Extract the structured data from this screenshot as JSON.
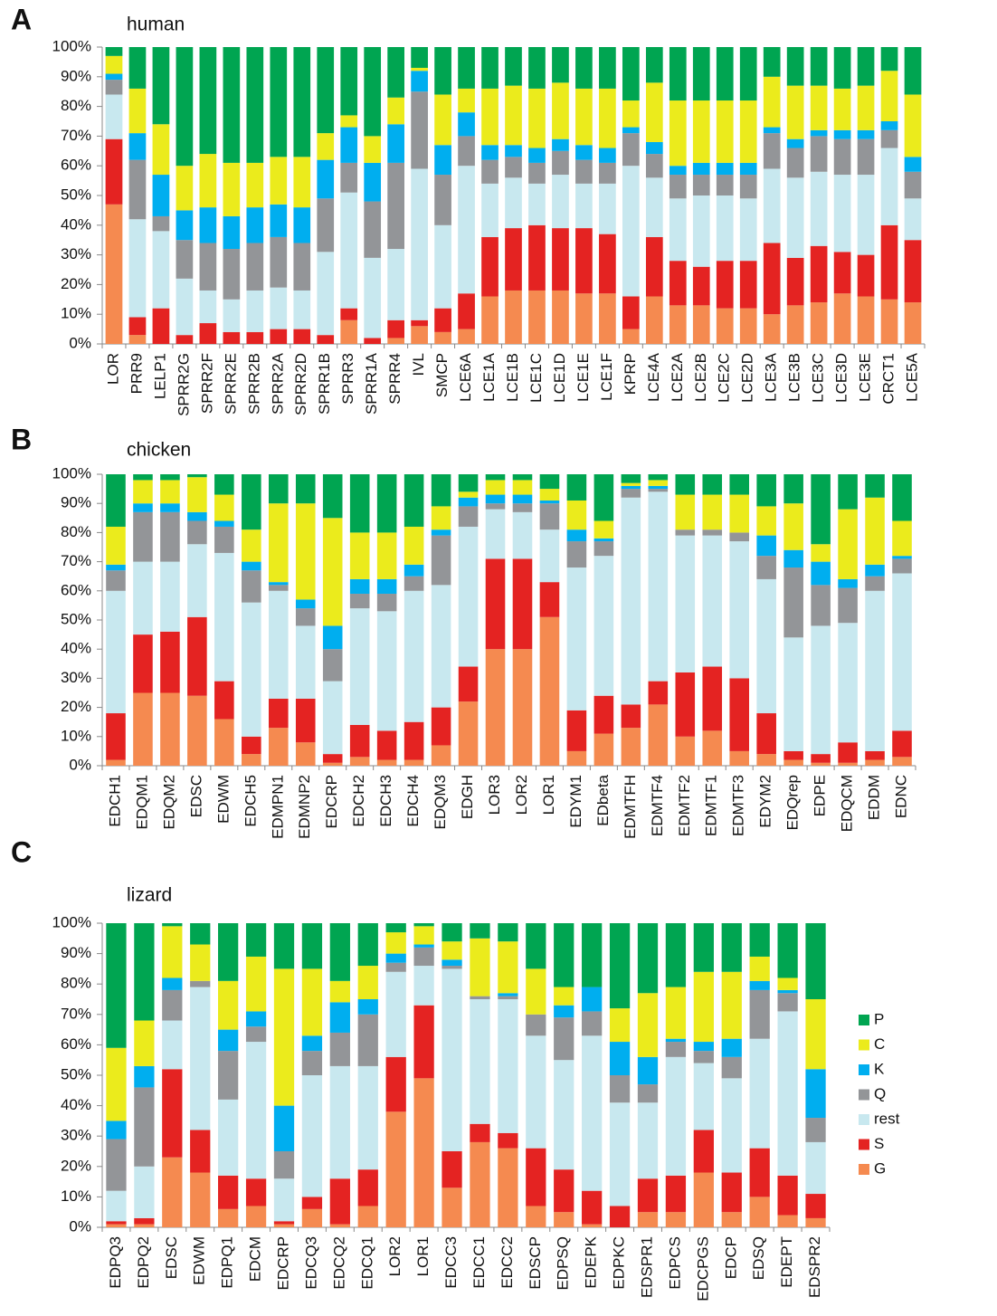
{
  "chart_data": [
    {
      "type": "bar",
      "stacked": true,
      "panel": "A",
      "title": "human",
      "categories": [
        "LOR",
        "PRR9",
        "LELP1",
        "SPRR2G",
        "SPRR2F",
        "SPRR2E",
        "SPRR2B",
        "SPRR2A",
        "SPRR2D",
        "SPRR1B",
        "SPRR3",
        "SPRR1A",
        "SPRR4",
        "IVL",
        "SMCP",
        "LCE6A",
        "LCE1A",
        "LCE1B",
        "LCE1C",
        "LCE1D",
        "LCE1E",
        "LCE1F",
        "KPRP",
        "LCE4A",
        "LCE2A",
        "LCE2B",
        "LCE2C",
        "LCE2D",
        "LCE3A",
        "LCE3B",
        "LCE3C",
        "LCE3D",
        "LCE3E",
        "CRCT1",
        "LCE5A"
      ],
      "highlight_indices": [
        0
      ],
      "highlight_color": "#e8262a",
      "ylim": [
        0,
        100
      ],
      "yticks": [
        {
          "value": 0,
          "label": "0%"
        },
        {
          "value": 10,
          "label": "10%"
        },
        {
          "value": 20,
          "label": "20%"
        },
        {
          "value": 30,
          "label": "30%"
        },
        {
          "value": 40,
          "label": "40%"
        },
        {
          "value": 50,
          "label": "50%"
        },
        {
          "value": 60,
          "label": "60%"
        },
        {
          "value": 70,
          "label": "70%"
        },
        {
          "value": 80,
          "label": "80%"
        },
        {
          "value": 90,
          "label": "90%"
        },
        {
          "value": 100,
          "label": "100%"
        }
      ],
      "series": [
        {
          "name": "G",
          "color": "#f58a50",
          "values": [
            47,
            3,
            0,
            0,
            0,
            0,
            0,
            0,
            0,
            0,
            8,
            0,
            2,
            6,
            4,
            5,
            16,
            18,
            18,
            18,
            17,
            17,
            5,
            16,
            13,
            13,
            12,
            12,
            10,
            13,
            14,
            17,
            16,
            15,
            14
          ]
        },
        {
          "name": "S",
          "color": "#e42322",
          "values": [
            22,
            6,
            12,
            3,
            7,
            4,
            4,
            5,
            5,
            3,
            4,
            2,
            6,
            2,
            8,
            12,
            20,
            21,
            22,
            21,
            22,
            20,
            11,
            20,
            15,
            13,
            16,
            16,
            24,
            16,
            19,
            14,
            14,
            25,
            21
          ]
        },
        {
          "name": "rest",
          "color": "#c8e8ef",
          "values": [
            15,
            33,
            26,
            19,
            11,
            11,
            14,
            14,
            13,
            28,
            39,
            27,
            24,
            51,
            28,
            43,
            18,
            17,
            14,
            18,
            15,
            17,
            44,
            20,
            21,
            24,
            22,
            21,
            25,
            27,
            25,
            26,
            27,
            26,
            14
          ]
        },
        {
          "name": "Q",
          "color": "#939598",
          "values": [
            5,
            20,
            5,
            13,
            16,
            17,
            16,
            17,
            16,
            18,
            10,
            19,
            29,
            26,
            17,
            10,
            8,
            7,
            7,
            8,
            8,
            7,
            11,
            8,
            8,
            7,
            7,
            8,
            12,
            10,
            12,
            12,
            12,
            6,
            9
          ]
        },
        {
          "name": "K",
          "color": "#00aeef",
          "values": [
            2,
            9,
            14,
            10,
            12,
            11,
            12,
            11,
            12,
            13,
            12,
            13,
            13,
            7,
            10,
            8,
            5,
            4,
            5,
            4,
            5,
            5,
            2,
            4,
            3,
            4,
            4,
            4,
            2,
            3,
            2,
            3,
            3,
            3,
            5
          ]
        },
        {
          "name": "C",
          "color": "#ebeb1c",
          "values": [
            6,
            15,
            17,
            15,
            18,
            18,
            15,
            16,
            17,
            9,
            4,
            9,
            9,
            1,
            17,
            8,
            19,
            20,
            20,
            19,
            19,
            20,
            9,
            20,
            22,
            21,
            21,
            21,
            17,
            18,
            15,
            14,
            15,
            17,
            21
          ]
        },
        {
          "name": "P",
          "color": "#00a551",
          "values": [
            3,
            14,
            26,
            40,
            36,
            39,
            39,
            37,
            37,
            29,
            23,
            30,
            17,
            7,
            16,
            14,
            14,
            13,
            14,
            12,
            14,
            14,
            18,
            12,
            18,
            18,
            18,
            18,
            10,
            13,
            13,
            14,
            13,
            8,
            16
          ]
        }
      ]
    },
    {
      "type": "bar",
      "stacked": true,
      "panel": "B",
      "title": "chicken",
      "categories": [
        "EDCH1",
        "EDQM1",
        "EDQM2",
        "EDSC",
        "EDWM",
        "EDCH5",
        "EDMPN1",
        "EDMNP2",
        "EDCRP",
        "EDCH2",
        "EDCH3",
        "EDCH4",
        "EDQM3",
        "EDGH",
        "LOR3",
        "LOR2",
        "LOR1",
        "EDYM1",
        "EDbeta",
        "EDMTFH",
        "EDMTF4",
        "EDMTF2",
        "EDMTF1",
        "EDMTF3",
        "EDYM2",
        "EDQrep",
        "EDPE",
        "EDQCM",
        "EDDM",
        "EDNC"
      ],
      "highlight_indices": [
        14,
        15,
        16
      ],
      "highlight_color": "#e8262a",
      "ylim": [
        0,
        100
      ],
      "yticks": [
        {
          "value": 0,
          "label": "0%"
        },
        {
          "value": 10,
          "label": "10%"
        },
        {
          "value": 20,
          "label": "20%"
        },
        {
          "value": 30,
          "label": "30%"
        },
        {
          "value": 40,
          "label": "40%"
        },
        {
          "value": 50,
          "label": "50%"
        },
        {
          "value": 60,
          "label": "60%"
        },
        {
          "value": 70,
          "label": "70%"
        },
        {
          "value": 80,
          "label": "80%"
        },
        {
          "value": 90,
          "label": "90%"
        },
        {
          "value": 100,
          "label": "100%"
        }
      ],
      "series": [
        {
          "name": "G",
          "color": "#f58a50",
          "values": [
            2,
            25,
            25,
            24,
            16,
            4,
            13,
            8,
            1,
            3,
            2,
            2,
            7,
            22,
            40,
            40,
            51,
            5,
            11,
            13,
            21,
            10,
            12,
            5,
            4,
            2,
            1,
            1,
            2,
            3
          ]
        },
        {
          "name": "S",
          "color": "#e42322",
          "values": [
            16,
            20,
            21,
            27,
            13,
            6,
            10,
            15,
            3,
            11,
            10,
            13,
            13,
            12,
            31,
            31,
            12,
            14,
            13,
            8,
            8,
            22,
            22,
            25,
            14,
            3,
            3,
            7,
            3,
            9
          ]
        },
        {
          "name": "rest",
          "color": "#c8e8ef",
          "values": [
            42,
            25,
            24,
            25,
            44,
            46,
            37,
            25,
            25,
            40,
            41,
            45,
            42,
            48,
            17,
            16,
            18,
            49,
            48,
            71,
            65,
            47,
            45,
            47,
            46,
            39,
            44,
            41,
            55,
            54
          ]
        },
        {
          "name": "Q",
          "color": "#939598",
          "values": [
            7,
            17,
            17,
            8,
            9,
            11,
            2,
            6,
            11,
            5,
            6,
            5,
            17,
            7,
            2,
            3,
            9,
            9,
            5,
            3,
            1,
            2,
            2,
            3,
            8,
            24,
            14,
            12,
            5,
            5
          ]
        },
        {
          "name": "K",
          "color": "#00aeef",
          "values": [
            2,
            3,
            3,
            3,
            2,
            3,
            1,
            3,
            8,
            5,
            5,
            4,
            2,
            3,
            3,
            3,
            1,
            4,
            1,
            1,
            1,
            0,
            0,
            0,
            7,
            6,
            8,
            3,
            4,
            1
          ]
        },
        {
          "name": "C",
          "color": "#ebeb1c",
          "values": [
            13,
            8,
            8,
            12,
            9,
            11,
            27,
            33,
            37,
            16,
            16,
            13,
            8,
            2,
            5,
            5,
            4,
            10,
            6,
            1,
            2,
            12,
            12,
            13,
            10,
            16,
            6,
            24,
            23,
            12
          ]
        },
        {
          "name": "P",
          "color": "#00a551",
          "values": [
            18,
            2,
            2,
            1,
            7,
            19,
            10,
            10,
            15,
            20,
            20,
            18,
            11,
            6,
            2,
            2,
            5,
            9,
            16,
            3,
            2,
            7,
            7,
            7,
            11,
            10,
            24,
            12,
            8,
            16
          ]
        }
      ]
    },
    {
      "type": "bar",
      "stacked": true,
      "panel": "C",
      "title": "lizard",
      "categories": [
        "EDPQ3",
        "EDPQ2",
        "EDSC",
        "EDWM",
        "EDPQ1",
        "EDCM",
        "EDCRP",
        "EDCQ3",
        "EDCQ2",
        "EDCQ1",
        "LOR2",
        "LOR1",
        "EDCC3",
        "EDCC1",
        "EDCC2",
        "EDSCP",
        "EDPSQ",
        "EDEPK",
        "EDPKC",
        "EDSPR1",
        "EDPCS",
        "EDCPGS",
        "EDCP",
        "EDSQ",
        "EDEPT",
        "EDSPR2"
      ],
      "highlight_indices": [
        10,
        11
      ],
      "highlight_color": "#e8262a",
      "legend": "right",
      "ylim": [
        0,
        100
      ],
      "yticks": [
        {
          "value": 0,
          "label": "0%"
        },
        {
          "value": 10,
          "label": "10%"
        },
        {
          "value": 20,
          "label": "20%"
        },
        {
          "value": 30,
          "label": "30%"
        },
        {
          "value": 40,
          "label": "40%"
        },
        {
          "value": 50,
          "label": "50%"
        },
        {
          "value": 60,
          "label": "60%"
        },
        {
          "value": 70,
          "label": "70%"
        },
        {
          "value": 80,
          "label": "80%"
        },
        {
          "value": 90,
          "label": "90%"
        },
        {
          "value": 100,
          "label": "100%"
        }
      ],
      "series": [
        {
          "name": "G",
          "color": "#f58a50",
          "values": [
            1,
            1,
            23,
            18,
            6,
            7,
            1,
            6,
            1,
            7,
            38,
            49,
            13,
            28,
            26,
            7,
            5,
            1,
            0,
            5,
            5,
            18,
            5,
            10,
            4,
            3
          ]
        },
        {
          "name": "S",
          "color": "#e42322",
          "values": [
            1,
            2,
            29,
            14,
            11,
            9,
            1,
            4,
            15,
            12,
            18,
            24,
            12,
            6,
            5,
            19,
            14,
            11,
            7,
            11,
            12,
            14,
            13,
            16,
            13,
            8
          ]
        },
        {
          "name": "rest",
          "color": "#c8e8ef",
          "values": [
            10,
            17,
            16,
            47,
            25,
            45,
            14,
            40,
            37,
            34,
            28,
            13,
            60,
            41,
            44,
            37,
            36,
            51,
            34,
            25,
            39,
            22,
            31,
            36,
            54,
            17
          ]
        },
        {
          "name": "Q",
          "color": "#939598",
          "values": [
            17,
            26,
            10,
            2,
            16,
            5,
            9,
            8,
            11,
            17,
            3,
            6,
            1,
            1,
            1,
            7,
            14,
            8,
            9,
            6,
            5,
            4,
            7,
            16,
            6,
            8
          ]
        },
        {
          "name": "K",
          "color": "#00aeef",
          "values": [
            6,
            7,
            4,
            0,
            7,
            5,
            15,
            5,
            10,
            5,
            3,
            1,
            2,
            0,
            1,
            0,
            4,
            8,
            11,
            9,
            1,
            3,
            6,
            3,
            1,
            16
          ]
        },
        {
          "name": "C",
          "color": "#ebeb1c",
          "values": [
            24,
            15,
            17,
            12,
            16,
            18,
            45,
            22,
            7,
            11,
            7,
            6,
            6,
            19,
            17,
            15,
            6,
            0,
            11,
            21,
            17,
            23,
            22,
            8,
            4,
            23
          ]
        },
        {
          "name": "P",
          "color": "#00a551",
          "values": [
            41,
            32,
            1,
            7,
            19,
            11,
            15,
            15,
            19,
            14,
            3,
            1,
            6,
            5,
            6,
            15,
            21,
            21,
            28,
            23,
            21,
            16,
            16,
            11,
            18,
            25
          ]
        }
      ]
    }
  ]
}
